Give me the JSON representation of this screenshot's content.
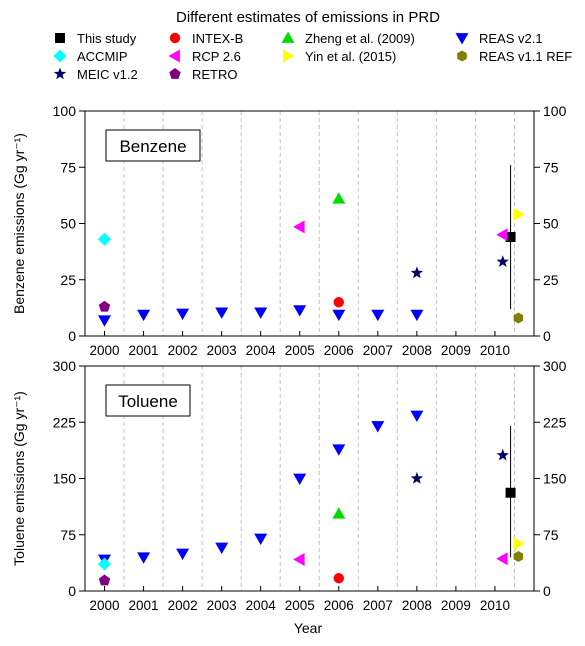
{
  "title": "Different estimates of emissions in PRD",
  "xlabel": "Year",
  "colors": {
    "This study": "#000000",
    "INTEX-B": "#ff0000",
    "Zheng et al. (2009)": "#00dd00",
    "REAS v2.1": "#0000ff",
    "ACCMIP": "#00ffff",
    "RCP 2.6": "#ff00ff",
    "Yin et al. (2015)": "#ffff00",
    "REAS v1.1 REF": "#808000",
    "MEIC v1.2": "#000066",
    "RETRO": "#800080"
  },
  "legend": [
    {
      "name": "This study",
      "marker": "square"
    },
    {
      "name": "INTEX-B",
      "marker": "circle"
    },
    {
      "name": "Zheng et al. (2009)",
      "marker": "triangle-up"
    },
    {
      "name": "REAS v2.1",
      "marker": "triangle-down"
    },
    {
      "name": "ACCMIP",
      "marker": "diamond"
    },
    {
      "name": "RCP 2.6",
      "marker": "triangle-left"
    },
    {
      "name": "Yin et al. (2015)",
      "marker": "triangle-right"
    },
    {
      "name": "REAS v1.1 REF",
      "marker": "hexagon"
    },
    {
      "name": "MEIC v1.2",
      "marker": "star"
    },
    {
      "name": "RETRO",
      "marker": "pentagon"
    }
  ],
  "chart_data": [
    {
      "type": "scatter",
      "panel_label": "Benzene",
      "ylabel": "Benzene emissions (Gg yr⁻¹)",
      "xlim": [
        1999.5,
        2011
      ],
      "ylim": [
        0,
        100
      ],
      "yticks": [
        0,
        25,
        50,
        75,
        100
      ],
      "xticks": [
        2000,
        2001,
        2002,
        2003,
        2004,
        2005,
        2006,
        2007,
        2008,
        2009,
        2010
      ],
      "grid": "vertical-dashed",
      "series": [
        {
          "name": "This study",
          "points": [
            [
              2010.4,
              44
            ]
          ],
          "error": [
            [
              12,
              76
            ]
          ]
        },
        {
          "name": "INTEX-B",
          "points": [
            [
              2006,
              15
            ]
          ]
        },
        {
          "name": "Zheng et al. (2009)",
          "points": [
            [
              2006,
              61
            ]
          ]
        },
        {
          "name": "REAS v2.1",
          "points": [
            [
              2000,
              7
            ],
            [
              2001,
              9.5
            ],
            [
              2002,
              10
            ],
            [
              2003,
              10.5
            ],
            [
              2004,
              10.5
            ],
            [
              2005,
              11.5
            ],
            [
              2006,
              9.5
            ],
            [
              2007,
              9.5
            ],
            [
              2008,
              9.5
            ]
          ]
        },
        {
          "name": "ACCMIP",
          "points": [
            [
              2000,
              43
            ]
          ]
        },
        {
          "name": "RCP 2.6",
          "points": [
            [
              2005,
              48.5
            ],
            [
              2010.2,
              45
            ]
          ]
        },
        {
          "name": "Yin et al. (2015)",
          "points": [
            [
              2010.6,
              54
            ]
          ]
        },
        {
          "name": "REAS v1.1 REF",
          "points": [
            [
              2010.6,
              8
            ]
          ]
        },
        {
          "name": "MEIC v1.2",
          "points": [
            [
              2008,
              28
            ],
            [
              2010.2,
              33
            ]
          ]
        },
        {
          "name": "RETRO",
          "points": [
            [
              2000,
              13
            ]
          ]
        }
      ]
    },
    {
      "type": "scatter",
      "panel_label": "Toluene",
      "ylabel": "Toluene emissions (Gg yr⁻¹)",
      "xlim": [
        1999.5,
        2011
      ],
      "ylim": [
        0,
        300
      ],
      "yticks": [
        0,
        75,
        150,
        225,
        300
      ],
      "xticks": [
        2000,
        2001,
        2002,
        2003,
        2004,
        2005,
        2006,
        2007,
        2008,
        2009,
        2010
      ],
      "grid": "vertical-dashed",
      "series": [
        {
          "name": "This study",
          "points": [
            [
              2010.4,
              131
            ]
          ],
          "error": [
            [
              45,
              220
            ]
          ]
        },
        {
          "name": "INTEX-B",
          "points": [
            [
              2006,
              17
            ]
          ]
        },
        {
          "name": "Zheng et al. (2009)",
          "points": [
            [
              2006,
              103
            ]
          ]
        },
        {
          "name": "REAS v2.1",
          "points": [
            [
              2000,
              42
            ],
            [
              2001,
              45
            ],
            [
              2002,
              50
            ],
            [
              2003,
              58
            ],
            [
              2004,
              70
            ],
            [
              2005,
              150
            ],
            [
              2006,
              189
            ],
            [
              2007,
              220
            ],
            [
              2008,
              234
            ]
          ]
        },
        {
          "name": "ACCMIP",
          "points": [
            [
              2000,
              36
            ]
          ]
        },
        {
          "name": "RCP 2.6",
          "points": [
            [
              2005,
              42
            ],
            [
              2010.2,
              43
            ]
          ]
        },
        {
          "name": "Yin et al. (2015)",
          "points": [
            [
              2010.6,
              63
            ]
          ]
        },
        {
          "name": "REAS v1.1 REF",
          "points": [
            [
              2010.6,
              46
            ]
          ]
        },
        {
          "name": "MEIC v1.2",
          "points": [
            [
              2008,
              150
            ],
            [
              2010.2,
              181
            ]
          ]
        },
        {
          "name": "RETRO",
          "points": [
            [
              2000,
              14
            ]
          ]
        }
      ]
    }
  ]
}
